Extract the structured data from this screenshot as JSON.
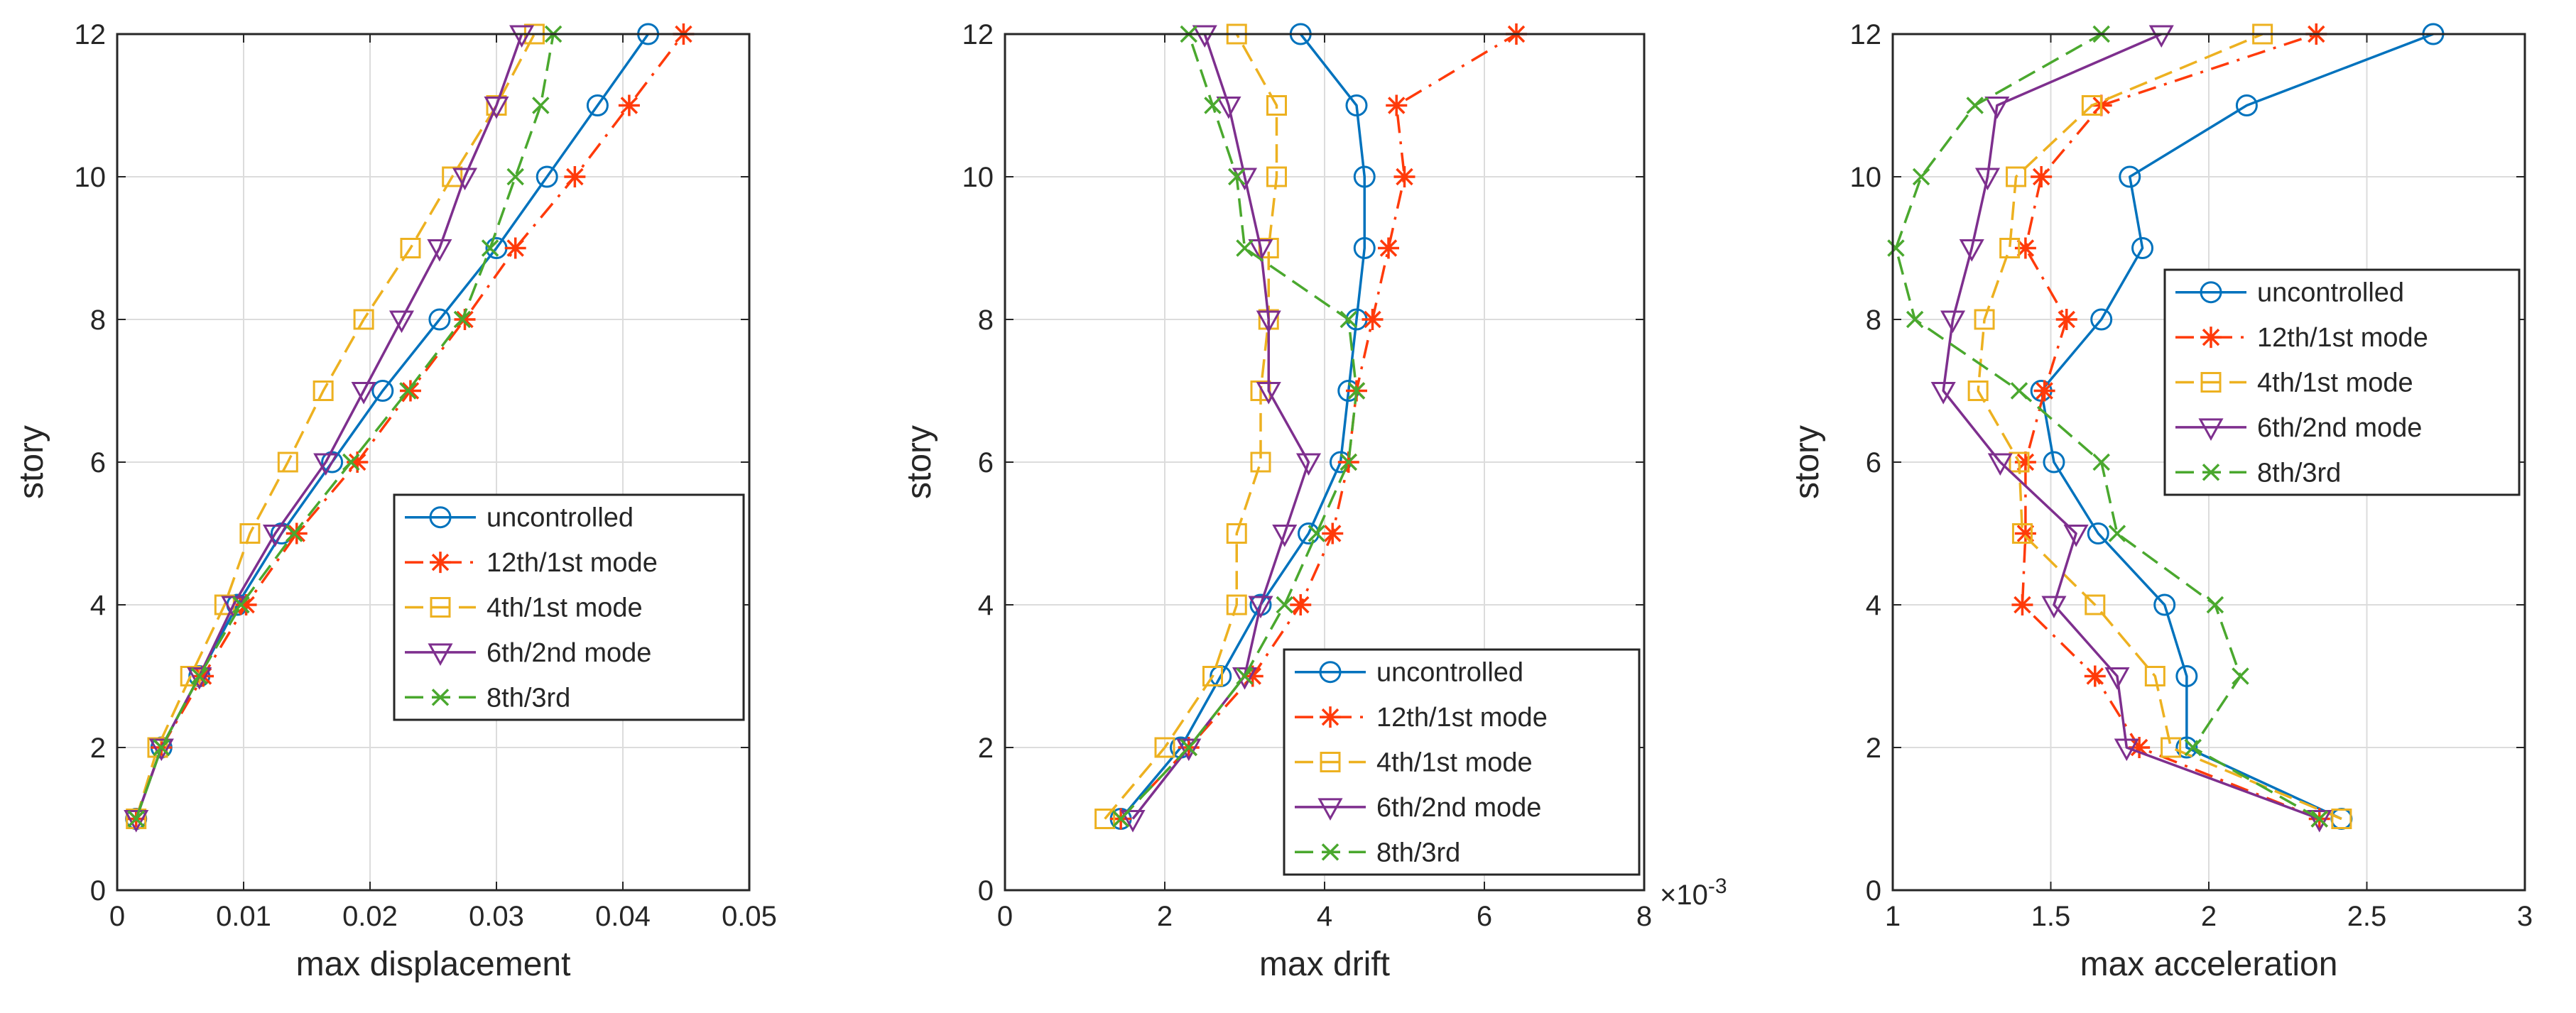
{
  "chart_data": [
    {
      "type": "line",
      "xlabel": "max displacement",
      "ylabel": "story",
      "xlim": [
        0,
        0.05
      ],
      "ylim": [
        0,
        12
      ],
      "xticks": [
        "0",
        "0.01",
        "0.02",
        "0.03",
        "0.04",
        "0.05"
      ],
      "yticks": [
        "0",
        "2",
        "4",
        "6",
        "8",
        "10",
        "12"
      ],
      "xticks_values": [
        0,
        0.01,
        0.02,
        0.03,
        0.04,
        0.05
      ],
      "yticks_values": [
        0,
        2,
        4,
        6,
        8,
        10,
        12
      ],
      "grid": true,
      "legend_position": "center-right",
      "y": [
        1,
        2,
        3,
        4,
        5,
        6,
        7,
        8,
        9,
        10,
        11,
        12
      ],
      "series": [
        {
          "name": "uncontrolled",
          "values": [
            0.0015,
            0.0035,
            0.0065,
            0.0095,
            0.013,
            0.017,
            0.021,
            0.0255,
            0.03,
            0.034,
            0.038,
            0.042
          ]
        },
        {
          "name": "12th/1st mode",
          "values": [
            0.0015,
            0.0035,
            0.0068,
            0.0102,
            0.0142,
            0.019,
            0.0232,
            0.0275,
            0.0315,
            0.0362,
            0.0405,
            0.0448
          ]
        },
        {
          "name": "4th/1st mode",
          "values": [
            0.0015,
            0.0032,
            0.0058,
            0.0085,
            0.0105,
            0.0135,
            0.0163,
            0.0195,
            0.0232,
            0.0265,
            0.03,
            0.033
          ]
        },
        {
          "name": "6th/2nd mode",
          "values": [
            0.0015,
            0.0035,
            0.0065,
            0.0092,
            0.0125,
            0.0165,
            0.0195,
            0.0225,
            0.0255,
            0.0275,
            0.03,
            0.032
          ]
        },
        {
          "name": "8th/3rd",
          "values": [
            0.0015,
            0.0035,
            0.0065,
            0.0098,
            0.014,
            0.0185,
            0.023,
            0.0273,
            0.0295,
            0.0315,
            0.0335,
            0.0345
          ]
        }
      ]
    },
    {
      "type": "line",
      "xlabel": "max drift",
      "ylabel": "story",
      "xlim": [
        0,
        0.008
      ],
      "ylim": [
        0,
        12
      ],
      "xticks": [
        "0",
        "2",
        "4",
        "6",
        "8"
      ],
      "yticks": [
        "0",
        "2",
        "4",
        "6",
        "8",
        "10",
        "12"
      ],
      "xticks_values": [
        0,
        0.002,
        0.004,
        0.006,
        0.008
      ],
      "yticks_values": [
        0,
        2,
        4,
        6,
        8,
        10,
        12
      ],
      "x_exponent": "-3",
      "grid": true,
      "legend_position": "bottom-right",
      "y": [
        1,
        2,
        3,
        4,
        5,
        6,
        7,
        8,
        9,
        10,
        11,
        12
      ],
      "series": [
        {
          "name": "uncontrolled",
          "values": [
            0.00145,
            0.0022,
            0.0027,
            0.0032,
            0.0038,
            0.0042,
            0.0043,
            0.0044,
            0.0045,
            0.0045,
            0.0044,
            0.0037
          ]
        },
        {
          "name": "12th/1st mode",
          "values": [
            0.00145,
            0.0023,
            0.0031,
            0.0037,
            0.0041,
            0.0043,
            0.0044,
            0.0046,
            0.0048,
            0.005,
            0.0049,
            0.0064
          ]
        },
        {
          "name": "4th/1st mode",
          "values": [
            0.00125,
            0.002,
            0.0026,
            0.0029,
            0.0029,
            0.0032,
            0.0032,
            0.0033,
            0.0033,
            0.0034,
            0.0034,
            0.0029
          ]
        },
        {
          "name": "6th/2nd mode",
          "values": [
            0.0016,
            0.0023,
            0.003,
            0.0032,
            0.0035,
            0.0038,
            0.0033,
            0.0033,
            0.0032,
            0.003,
            0.0028,
            0.0025
          ]
        },
        {
          "name": "8th/3rd",
          "values": [
            0.00145,
            0.0023,
            0.003,
            0.0035,
            0.0039,
            0.0043,
            0.0044,
            0.0043,
            0.003,
            0.0029,
            0.0026,
            0.0023
          ]
        }
      ]
    },
    {
      "type": "line",
      "xlabel": "max acceleration",
      "ylabel": "story",
      "xlim": [
        1,
        3
      ],
      "ylim": [
        0,
        12
      ],
      "xticks": [
        "1",
        "1.5",
        "2",
        "2.5",
        "3"
      ],
      "yticks": [
        "0",
        "2",
        "4",
        "6",
        "8",
        "10",
        "12"
      ],
      "xticks_values": [
        1,
        1.5,
        2,
        2.5,
        3
      ],
      "yticks_values": [
        0,
        2,
        4,
        6,
        8,
        10,
        12
      ],
      "grid": true,
      "legend_position": "top-right",
      "y": [
        1,
        2,
        3,
        4,
        5,
        6,
        7,
        8,
        9,
        10,
        11,
        12
      ],
      "series": [
        {
          "name": "uncontrolled",
          "values": [
            2.42,
            1.93,
            1.93,
            1.86,
            1.65,
            1.51,
            1.47,
            1.66,
            1.79,
            1.75,
            2.12,
            2.71
          ]
        },
        {
          "name": "12th/1st mode",
          "values": [
            2.35,
            1.78,
            1.64,
            1.41,
            1.42,
            1.42,
            1.48,
            1.55,
            1.42,
            1.47,
            1.66,
            2.34
          ]
        },
        {
          "name": "4th/1st mode",
          "values": [
            2.42,
            1.88,
            1.83,
            1.64,
            1.41,
            1.4,
            1.27,
            1.29,
            1.37,
            1.39,
            1.63,
            2.17
          ]
        },
        {
          "name": "6th/2nd mode",
          "values": [
            2.35,
            1.74,
            1.71,
            1.51,
            1.58,
            1.34,
            1.16,
            1.19,
            1.25,
            1.3,
            1.33,
            1.85
          ]
        },
        {
          "name": "8th/3rd",
          "values": [
            2.35,
            1.95,
            2.1,
            2.02,
            1.71,
            1.66,
            1.4,
            1.07,
            1.01,
            1.09,
            1.26,
            1.66
          ]
        }
      ]
    }
  ],
  "legend_labels": [
    "uncontrolled",
    "12th/1st mode",
    "4th/1st mode",
    "6th/2nd mode",
    "8th/3rd"
  ],
  "colors": {
    "uncontrolled": "#0072BD",
    "12th/1st mode": "#FF3A0A",
    "4th/1st mode": "#EDB120",
    "6th/2nd mode": "#7E2F8E",
    "8th/3rd": "#4AA82E",
    "axis": "#262626",
    "grid": "#DCDCDC"
  },
  "markers": {
    "uncontrolled": "circle",
    "12th/1st mode": "asterisk",
    "4th/1st mode": "square",
    "6th/2nd mode": "triangle-down",
    "8th/3rd": "x"
  },
  "line_styles": {
    "uncontrolled": "solid",
    "12th/1st mode": "dash-dot",
    "4th/1st mode": "dashed",
    "6th/2nd mode": "solid",
    "8th/3rd": "dashed"
  }
}
